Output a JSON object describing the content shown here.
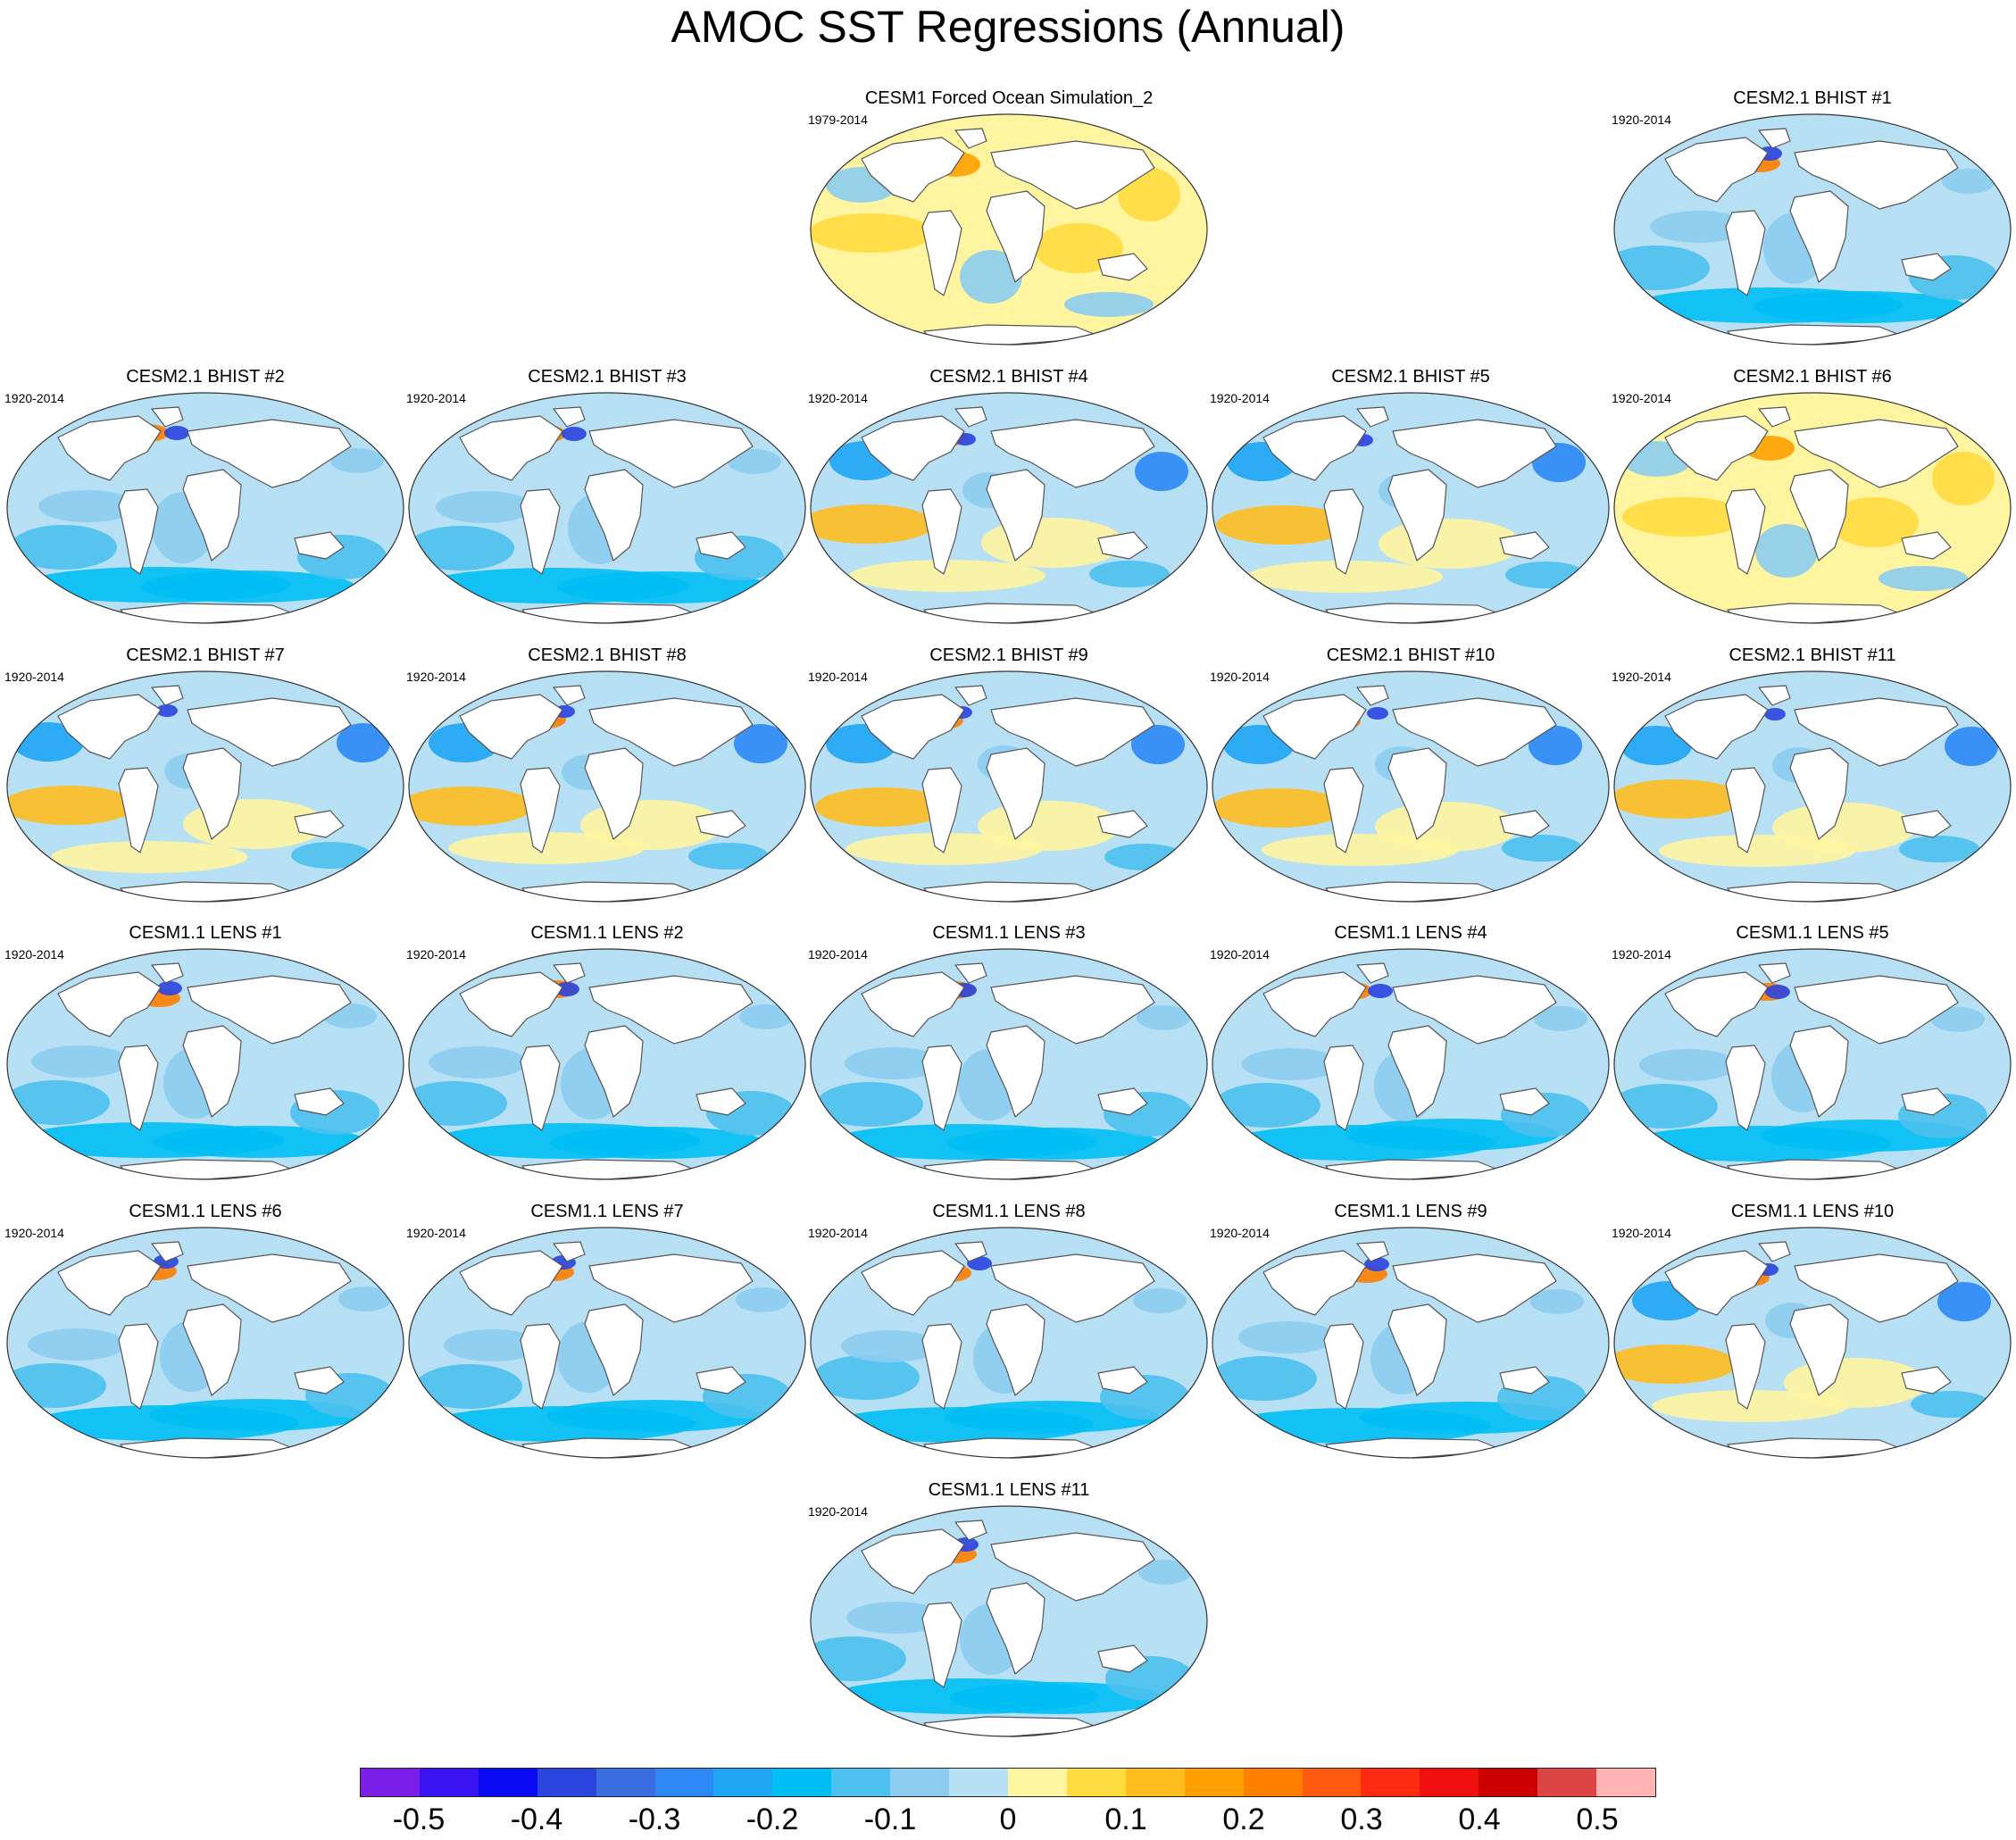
{
  "title": "AMOC SST Regressions (Annual)",
  "panels": [
    {
      "title": "CESM1 Forced Ocean Simulation_2",
      "years": "1979-2014",
      "style": "warm"
    },
    {
      "title": "CESM2.1 BHIST #1",
      "years": "1920-2014",
      "style": "cool"
    },
    {
      "title": "CESM2.1 BHIST #2",
      "years": "1920-2014",
      "style": "cool"
    },
    {
      "title": "CESM2.1 BHIST #3",
      "years": "1920-2014",
      "style": "cool"
    },
    {
      "title": "CESM2.1 BHIST #4",
      "years": "1920-2014",
      "style": "mixed"
    },
    {
      "title": "CESM2.1 BHIST #5",
      "years": "1920-2014",
      "style": "mixed"
    },
    {
      "title": "CESM2.1 BHIST #6",
      "years": "1920-2014",
      "style": "warm"
    },
    {
      "title": "CESM2.1 BHIST #7",
      "years": "1920-2014",
      "style": "mixed"
    },
    {
      "title": "CESM2.1 BHIST #8",
      "years": "1920-2014",
      "style": "mixed"
    },
    {
      "title": "CESM2.1 BHIST #9",
      "years": "1920-2014",
      "style": "mixed"
    },
    {
      "title": "CESM2.1 BHIST #10",
      "years": "1920-2014",
      "style": "mixed"
    },
    {
      "title": "CESM2.1 BHIST #11",
      "years": "1920-2014",
      "style": "mixed"
    },
    {
      "title": "CESM1.1 LENS #1",
      "years": "1920-2014",
      "style": "cool"
    },
    {
      "title": "CESM1.1 LENS #2",
      "years": "1920-2014",
      "style": "cool"
    },
    {
      "title": "CESM1.1 LENS #3",
      "years": "1920-2014",
      "style": "cool"
    },
    {
      "title": "CESM1.1 LENS #4",
      "years": "1920-2014",
      "style": "cool"
    },
    {
      "title": "CESM1.1 LENS #5",
      "years": "1920-2014",
      "style": "cool"
    },
    {
      "title": "CESM1.1 LENS #6",
      "years": "1920-2014",
      "style": "cool"
    },
    {
      "title": "CESM1.1 LENS #7",
      "years": "1920-2014",
      "style": "cool"
    },
    {
      "title": "CESM1.1 LENS #8",
      "years": "1920-2014",
      "style": "cool"
    },
    {
      "title": "CESM1.1 LENS #9",
      "years": "1920-2014",
      "style": "cool"
    },
    {
      "title": "CESM1.1 LENS #10",
      "years": "1920-2014",
      "style": "mixed"
    },
    {
      "title": "CESM1.1 LENS #11",
      "years": "1920-2014",
      "style": "cool"
    }
  ],
  "colorbar": {
    "colors": [
      "#7b1fe8",
      "#3a14f0",
      "#0a0af5",
      "#2a44e0",
      "#3a6ee0",
      "#2b88f5",
      "#1ea6f5",
      "#00bff5",
      "#4cc0ee",
      "#8ccdef",
      "#b8e0f5",
      "#fff5a0",
      "#ffdc40",
      "#ffbd1f",
      "#ffa000",
      "#ff7f00",
      "#ff5a10",
      "#ff2a10",
      "#f01010",
      "#cc0000",
      "#dd4444",
      "#ffb3b3"
    ],
    "tick_labels": [
      "-0.5",
      "-0.4",
      "-0.3",
      "-0.2",
      "-0.1",
      "0",
      "0.1",
      "0.2",
      "0.3",
      "0.4",
      "0.5"
    ]
  }
}
